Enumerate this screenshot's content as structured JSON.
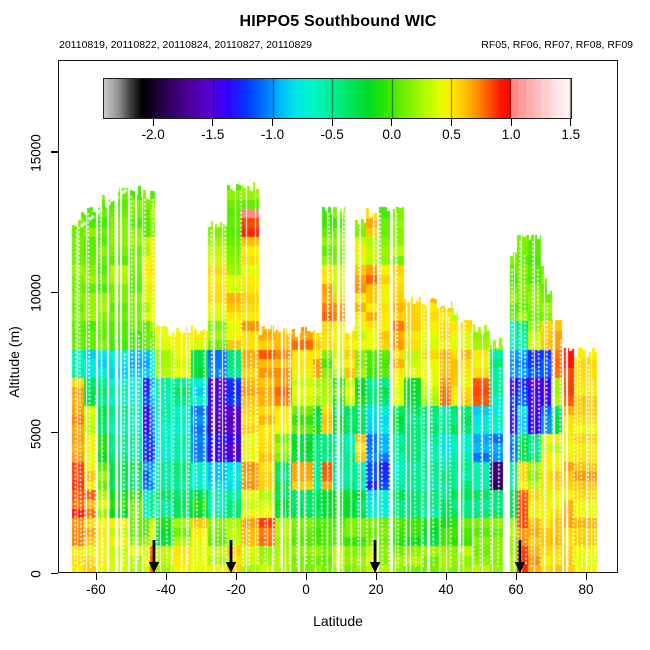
{
  "title": "HIPPO5 Southbound WIC",
  "subtitle_left": "20110819, 20110822, 20110824, 20110827, 20110829",
  "subtitle_right": "RF05, RF06, RF07, RF08, RF09",
  "x_axis": {
    "label": "Latitude",
    "ticks": [
      -60,
      -40,
      -20,
      0,
      20,
      40,
      60,
      80
    ],
    "range": [
      -70.9,
      89.1
    ]
  },
  "y_axis": {
    "label": "Altitude (m)",
    "ticks": [
      0,
      5000,
      10000,
      15000
    ],
    "range": [
      0,
      18270
    ]
  },
  "colorbar": {
    "tick_labels": [
      "-2.0",
      "-1.5",
      "-1.0",
      "-0.5",
      "0.0",
      "0.5",
      "1.0",
      "1.5"
    ],
    "range": [
      -2.42,
      1.51
    ],
    "stops": [
      [
        -2.42,
        "#c8c8c8"
      ],
      [
        -2.3,
        "#909090"
      ],
      [
        -2.2,
        "#404040"
      ],
      [
        -2.1,
        "#000000"
      ],
      [
        -1.95,
        "#240046"
      ],
      [
        -1.75,
        "#46008c"
      ],
      [
        -1.55,
        "#5a00d2"
      ],
      [
        -1.38,
        "#3200ff"
      ],
      [
        -1.2,
        "#0040ff"
      ],
      [
        -1.05,
        "#0080ff"
      ],
      [
        -0.95,
        "#00b4ff"
      ],
      [
        -0.82,
        "#00e6e6"
      ],
      [
        -0.68,
        "#00f5c8"
      ],
      [
        -0.52,
        "#00f09b"
      ],
      [
        -0.36,
        "#00e660"
      ],
      [
        -0.2,
        "#00dc28"
      ],
      [
        -0.05,
        "#32e600"
      ],
      [
        0.12,
        "#78f000"
      ],
      [
        0.28,
        "#b4fa00"
      ],
      [
        0.4,
        "#e6ff00"
      ],
      [
        0.5,
        "#ffeb00"
      ],
      [
        0.62,
        "#ffbe00"
      ],
      [
        0.72,
        "#ff8c00"
      ],
      [
        0.82,
        "#ff5000"
      ],
      [
        0.92,
        "#ff1400"
      ],
      [
        0.99,
        "#ff0a00"
      ]
    ],
    "pink_steps": [
      "#ff8787",
      "#ff9b9b",
      "#ffadad",
      "#ffbebe",
      "#ffcdcd",
      "#ffdcdc",
      "#ffe8e8",
      "#fff3f3"
    ]
  },
  "arrows_lat": [
    -43.3,
    -21.3,
    19.7,
    61.0
  ],
  "chart_data": {
    "type": "heatmap",
    "x_name": "Latitude (deg)",
    "y_name": "Altitude (m)",
    "value_name": "WIC (color scale -2.4 to 1.5)",
    "row_height_m": 1000,
    "lat_extent": [
      -67,
      83.3
    ],
    "alt_extent": [
      0,
      13900
    ],
    "columns_note": "each column: [lat_start, lat_end, top_alt_m, top_alt_right_m_or_null, values bottom-to-top per 1000 m]",
    "columns": [
      [
        -67.0,
        -63.5,
        12300,
        12700,
        [
          0.6,
          0.8,
          0.85,
          0.8,
          0.7,
          0.65,
          0.6,
          -0.6,
          0.1,
          0.06,
          0.15,
          0.08,
          0.12
        ]
      ],
      [
        -63.5,
        -60.0,
        12700,
        13100,
        [
          0.5,
          0.6,
          0.7,
          0.55,
          0.45,
          0.35,
          -0.3,
          -0.85,
          0.05,
          0.2,
          0.1,
          0.06,
          0.1
        ]
      ],
      [
        -60.0,
        -56.0,
        13100,
        13400,
        [
          0.48,
          0.5,
          0.3,
          0.1,
          -0.2,
          -0.35,
          -0.45,
          -0.85,
          0.06,
          0.18,
          0.08,
          0.12,
          0.06,
          0.08
        ]
      ],
      [
        -56.0,
        -50.5,
        13400,
        13650,
        [
          0.35,
          0.4,
          -0.1,
          -0.35,
          -0.5,
          -0.55,
          -0.6,
          -0.8,
          0.08,
          0.05,
          0.18,
          0.1,
          0.06,
          0.1
        ]
      ],
      [
        -50.5,
        -46.5,
        13600,
        null,
        [
          0.3,
          0.15,
          0.05,
          -0.35,
          -0.5,
          -0.62,
          -0.75,
          -0.9,
          0.0,
          0.12,
          0.05,
          0.15,
          0.1,
          0.05
        ]
      ],
      [
        -46.5,
        -44.6,
        13500,
        null,
        [
          0.35,
          0.1,
          -0.6,
          -1.1,
          -1.25,
          -1.45,
          -1.2,
          -0.9,
          0.15,
          0.3,
          0.45,
          0.3,
          0.12,
          0.05
        ]
      ],
      [
        -44.6,
        -42.9,
        13500,
        null,
        [
          0.75,
          0.3,
          -0.5,
          -1.0,
          -1.2,
          -1.1,
          -0.9,
          -0.7,
          0.2,
          0.4,
          0.55,
          0.45,
          0.15,
          0.08
        ]
      ],
      [
        -42.9,
        -38.0,
        8650,
        null,
        [
          0.3,
          -0.2,
          -0.45,
          -0.55,
          -0.62,
          -0.6,
          -0.5,
          0.3,
          0.45
        ]
      ],
      [
        -38.0,
        -33.0,
        8650,
        null,
        [
          0.5,
          0.2,
          -0.4,
          -0.5,
          -0.55,
          -0.6,
          -0.45,
          0.4,
          0.5
        ]
      ],
      [
        -33.0,
        -28.0,
        8650,
        null,
        [
          0.4,
          0.5,
          -0.2,
          -0.65,
          -1.0,
          -1.1,
          -0.8,
          -0.3,
          0.45
        ]
      ],
      [
        -28.0,
        -22.5,
        12400,
        null,
        [
          0.35,
          0.1,
          -0.6,
          -0.9,
          -1.35,
          -1.6,
          -1.5,
          -1.0,
          0.2,
          0.45,
          0.55,
          0.3,
          0.12
        ]
      ],
      [
        -22.5,
        -18.5,
        13800,
        null,
        [
          0.5,
          0.25,
          -0.5,
          -0.8,
          -1.5,
          -1.55,
          -1.2,
          -0.5,
          0.5,
          0.6,
          0.3,
          0.12,
          0.06,
          0.1
        ]
      ],
      [
        -18.5,
        -13.5,
        13800,
        null,
        [
          0.3,
          0.6,
          0.4,
          0.65,
          0.5,
          0.55,
          0.6,
          0.65,
          0.6,
          0.5,
          0.45,
          0.55,
          0.92,
          0.15
        ]
      ],
      [
        -13.5,
        -9.0,
        8650,
        null,
        [
          0.25,
          0.85,
          0.35,
          0.5,
          0.6,
          0.55,
          0.65,
          0.72,
          0.6
        ]
      ],
      [
        -9.0,
        -4.0,
        8650,
        null,
        [
          0.2,
          0.3,
          -0.3,
          -0.4,
          0.2,
          0.4,
          0.75,
          0.7,
          0.55
        ]
      ],
      [
        -4.0,
        2.0,
        8650,
        null,
        [
          0.15,
          0.1,
          -0.4,
          0.6,
          -0.3,
          0.0,
          0.3,
          0.55,
          0.7
        ]
      ],
      [
        2.0,
        4.5,
        8650,
        null,
        [
          0.1,
          0.0,
          -0.35,
          -0.5,
          -0.4,
          -0.2,
          0.3,
          0.6,
          0.5
        ]
      ],
      [
        4.5,
        7.5,
        13000,
        null,
        [
          0.12,
          0.04,
          -0.3,
          0.75,
          -0.4,
          0.55,
          0.3,
          0.1,
          0.45,
          0.7,
          0.6,
          0.12,
          0.05
        ]
      ],
      [
        7.5,
        11.0,
        13000,
        null,
        [
          0.2,
          0.1,
          -0.2,
          -0.5,
          -0.45,
          -0.3,
          0.0,
          0.3,
          0.45,
          0.65,
          0.3,
          0.1,
          0.05
        ]
      ],
      [
        11.0,
        14.0,
        8650,
        null,
        [
          0.15,
          0.05,
          -0.3,
          -0.5,
          -0.55,
          -0.4,
          0.4,
          0.55,
          0.5
        ]
      ],
      [
        14.0,
        17.2,
        12650,
        null,
        [
          0.15,
          0.05,
          -0.35,
          -0.55,
          0.6,
          -0.4,
          -0.2,
          0.2,
          0.4,
          0.55,
          0.65,
          0.4,
          0.1
        ]
      ],
      [
        17.2,
        20.5,
        12800,
        null,
        [
          0.3,
          0.1,
          -0.8,
          -1.2,
          -1.1,
          -0.9,
          -0.5,
          0.0,
          0.45,
          0.6,
          0.7,
          0.3,
          0.6
        ]
      ],
      [
        20.5,
        24.0,
        13000,
        null,
        [
          0.25,
          0.05,
          -0.7,
          -1.2,
          -1.0,
          -0.8,
          -0.4,
          0.1,
          0.5,
          0.55,
          0.5,
          0.2,
          0.1
        ]
      ],
      [
        24.0,
        28.0,
        13000,
        null,
        [
          0.2,
          0.0,
          -0.4,
          -0.6,
          -0.5,
          -0.3,
          0.3,
          0.55,
          0.65,
          0.6,
          0.5,
          0.2,
          0.1
        ]
      ],
      [
        28.0,
        33.0,
        9650,
        null,
        [
          0.2,
          -0.1,
          -0.45,
          -0.5,
          -0.45,
          -0.4,
          -0.2,
          0.35,
          0.5,
          0.55
        ]
      ],
      [
        33.0,
        38.0,
        9600,
        null,
        [
          0.15,
          -0.2,
          -0.5,
          -0.55,
          -0.5,
          -0.45,
          0.3,
          0.5,
          0.45,
          0.55
        ]
      ],
      [
        38.0,
        41.5,
        9600,
        null,
        [
          0.2,
          -0.1,
          -0.4,
          -0.5,
          -0.8,
          -0.5,
          0.7,
          0.6,
          0.5,
          0.55
        ]
      ],
      [
        41.5,
        43.5,
        9300,
        null,
        [
          0.25,
          0.0,
          -0.4,
          -0.5,
          -0.6,
          -0.4,
          0.5,
          0.55,
          0.45,
          0.3
        ]
      ],
      [
        43.5,
        44.3,
        800,
        null,
        [
          0.2
        ]
      ],
      [
        44.3,
        47.5,
        9100,
        null,
        [
          0.25,
          0.0,
          -0.4,
          -0.5,
          -0.6,
          -0.4,
          0.5,
          0.55,
          0.45
        ]
      ],
      [
        47.5,
        52.5,
        8700,
        null,
        [
          0.2,
          0.1,
          -0.4,
          -0.6,
          -1.0,
          -0.8,
          0.8,
          0.45,
          0.3
        ]
      ],
      [
        52.5,
        56.3,
        8200,
        null,
        [
          0.15,
          0.1,
          -0.4,
          -1.9,
          -1.0,
          -0.7,
          -0.6,
          -0.5,
          0.2
        ]
      ],
      [
        58.3,
        60.3,
        11400,
        null,
        [
          0.3,
          0.2,
          -0.3,
          -0.6,
          -1.0,
          -1.4,
          -1.3,
          -1.0,
          -0.6,
          0.1,
          0.05,
          0.1
        ]
      ],
      [
        60.3,
        63.5,
        12000,
        null,
        [
          0.9,
          0.8,
          0.85,
          0.5,
          -0.3,
          -0.9,
          -1.2,
          -1.0,
          -0.5,
          0.15,
          0.1,
          0.05
        ]
      ],
      [
        63.5,
        67.0,
        12050,
        null,
        [
          0.7,
          0.6,
          0.5,
          0.2,
          -0.5,
          -1.4,
          -1.5,
          -1.2,
          0.3,
          0.15,
          0.1,
          0.1
        ]
      ],
      [
        67.0,
        70.0,
        11000,
        9800,
        [
          0.5,
          0.55,
          0.45,
          0.5,
          0.4,
          -1.0,
          -1.4,
          -1.2,
          0.5,
          0.2,
          0.1
        ]
      ],
      [
        70.0,
        73.5,
        9500,
        8800,
        [
          0.5,
          0.55,
          0.45,
          0.5,
          0.4,
          -0.3,
          0.3,
          0.85,
          0.6
        ]
      ],
      [
        73.5,
        76.5,
        8100,
        null,
        [
          0.5,
          0.6,
          0.55,
          0.6,
          0.5,
          0.55,
          0.8,
          0.9
        ]
      ],
      [
        76.5,
        83.3,
        7900,
        null,
        [
          0.45,
          0.55,
          0.5,
          0.6,
          0.55,
          0.5,
          0.55,
          0.5
        ]
      ]
    ],
    "gaps": [
      {
        "lat0": 56.3,
        "lat1": 58.3,
        "note": "no data full column"
      },
      {
        "lat0": 43.5,
        "lat1": 44.3,
        "note": "no data above 800 m"
      },
      {
        "lat0": -41.5,
        "lat1": -32.0,
        "note": "no data above 8650 m"
      },
      {
        "lat0": -13.0,
        "lat1": 4.5,
        "note": "no data above 8650 m"
      }
    ],
    "tracks": {
      "diagonal": [
        [
          -64.3,
          12350
        ],
        [
          -51.0,
          13680
        ]
      ],
      "verticals": [
        [
          -65.8,
          12400
        ],
        [
          -64.6,
          12500
        ],
        [
          -63.2,
          5200
        ],
        [
          -61.9,
          13000
        ],
        [
          -60.2,
          6500
        ],
        [
          -58.4,
          13400
        ],
        [
          -56.6,
          7000
        ],
        [
          -54.4,
          13500
        ],
        [
          -52.0,
          8000
        ],
        [
          -49.6,
          13600
        ],
        [
          -47.9,
          8650
        ],
        [
          -45.9,
          13500
        ],
        [
          -44.6,
          8500
        ],
        [
          -43.6,
          13500
        ],
        [
          -42.2,
          8650
        ],
        [
          -40.0,
          7200
        ],
        [
          -37.9,
          8650
        ],
        [
          -35.6,
          7000
        ],
        [
          -33.5,
          8650
        ],
        [
          -31.3,
          6800
        ],
        [
          -29.2,
          8650
        ],
        [
          -26.9,
          12400
        ],
        [
          -24.9,
          7400
        ],
        [
          -23.0,
          13800
        ],
        [
          -20.6,
          8500
        ],
        [
          -18.3,
          13800
        ],
        [
          -16.0,
          8000
        ],
        [
          -13.9,
          8650
        ],
        [
          -11.6,
          7300
        ],
        [
          -9.4,
          8650
        ],
        [
          -7.1,
          7500
        ],
        [
          -4.8,
          8650
        ],
        [
          -2.4,
          7200
        ],
        [
          -0.2,
          8650
        ],
        [
          2.1,
          7600
        ],
        [
          4.4,
          8650
        ],
        [
          6.3,
          13000
        ],
        [
          8.6,
          7800
        ],
        [
          10.6,
          13000
        ],
        [
          12.8,
          8650
        ],
        [
          15.1,
          12650
        ],
        [
          17.3,
          8000
        ],
        [
          19.2,
          12800
        ],
        [
          21.5,
          13000
        ],
        [
          23.8,
          7600
        ],
        [
          26.1,
          13000
        ],
        [
          28.6,
          9650
        ],
        [
          31.1,
          7500
        ],
        [
          33.6,
          9600
        ],
        [
          36.1,
          7400
        ],
        [
          38.6,
          9600
        ],
        [
          41.1,
          9300
        ],
        [
          45.1,
          9100
        ],
        [
          47.6,
          8700
        ],
        [
          50.1,
          8000
        ],
        [
          52.6,
          8200
        ],
        [
          55.1,
          7500
        ],
        [
          59.1,
          11000
        ],
        [
          60.9,
          12000
        ],
        [
          62.6,
          11500
        ],
        [
          64.6,
          12000
        ],
        [
          66.6,
          11000
        ],
        [
          68.6,
          9800
        ],
        [
          70.6,
          9000
        ],
        [
          72.6,
          8500
        ],
        [
          74.6,
          8100
        ],
        [
          76.6,
          7900
        ],
        [
          78.6,
          7800
        ],
        [
          80.6,
          7600
        ],
        [
          82.3,
          7000
        ]
      ]
    }
  }
}
